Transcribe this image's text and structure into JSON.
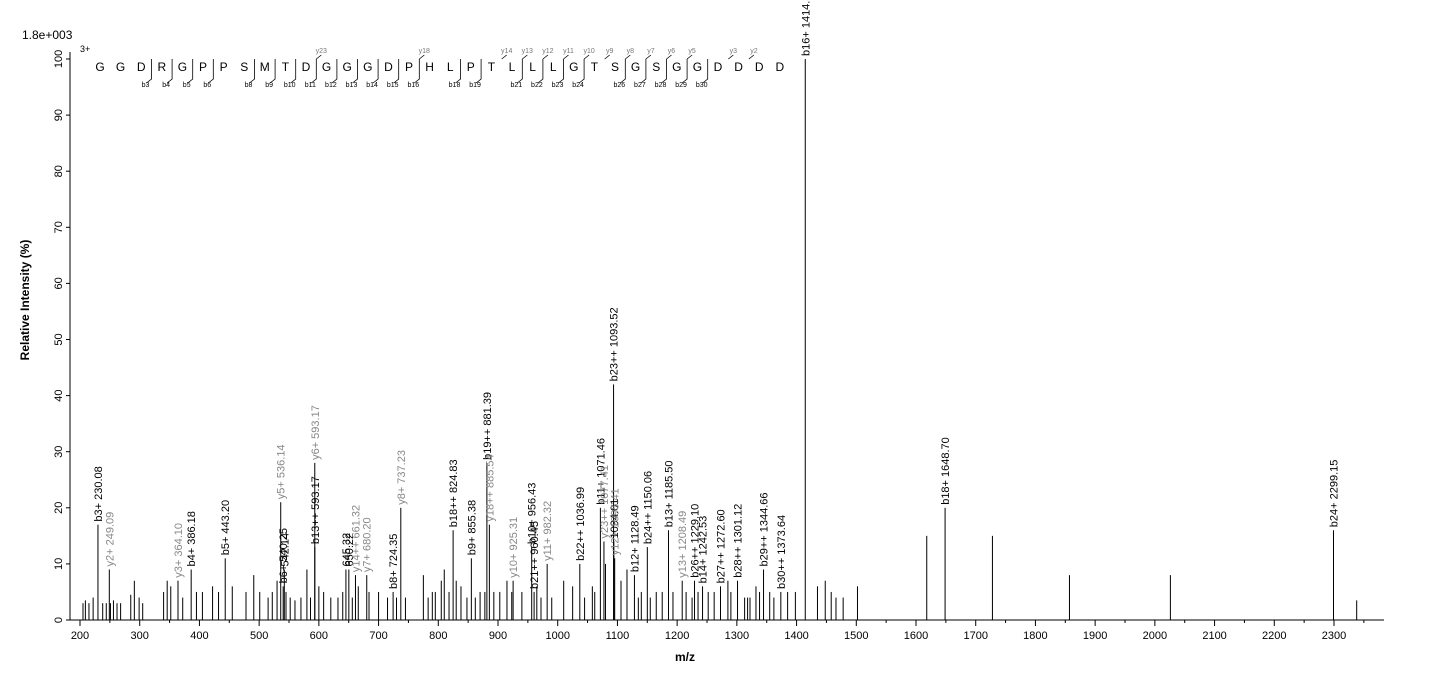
{
  "chart_data": {
    "type": "bar",
    "scale_label": "1.8e+003",
    "precursor_charge": "3+",
    "xlabel": "m/z",
    "ylabel": "Relative   Intensity (%)",
    "xlim": [
      195,
      2380
    ],
    "ylim": [
      0,
      100
    ],
    "x_ticks": [
      200,
      300,
      400,
      500,
      600,
      700,
      800,
      900,
      1000,
      1100,
      1200,
      1300,
      1400,
      1500,
      1600,
      1700,
      1800,
      1900,
      2000,
      2100,
      2200,
      2300
    ],
    "y_ticks": [
      0,
      10,
      20,
      30,
      40,
      50,
      60,
      70,
      80,
      90,
      100
    ],
    "sequence": [
      "G",
      "G",
      "D",
      "R",
      "G",
      "P",
      "P",
      "S",
      "M",
      "T",
      "D",
      "G",
      "G",
      "G",
      "D",
      "P",
      "H",
      "L",
      "P",
      "T",
      "L",
      "L",
      "L",
      "G",
      "T",
      "S",
      "G",
      "S",
      "G",
      "G",
      "D",
      "D",
      "D",
      "D"
    ],
    "b_ions": [
      {
        "after": 3,
        "label": "b3"
      },
      {
        "after": 4,
        "label": "b4"
      },
      {
        "after": 5,
        "label": "b5"
      },
      {
        "after": 6,
        "label": "b6"
      },
      {
        "after": 8,
        "label": "b8"
      },
      {
        "after": 9,
        "label": "b9"
      },
      {
        "after": 10,
        "label": "b10"
      },
      {
        "after": 11,
        "label": "b11"
      },
      {
        "after": 12,
        "label": "b12"
      },
      {
        "after": 13,
        "label": "b13"
      },
      {
        "after": 14,
        "label": "b14"
      },
      {
        "after": 15,
        "label": "b15"
      },
      {
        "after": 16,
        "label": "b16"
      },
      {
        "after": 18,
        "label": "b18"
      },
      {
        "after": 19,
        "label": "b19"
      },
      {
        "after": 21,
        "label": "b21"
      },
      {
        "after": 22,
        "label": "b22"
      },
      {
        "after": 23,
        "label": "b23"
      },
      {
        "after": 24,
        "label": "b24"
      },
      {
        "after": 26,
        "label": "b26"
      },
      {
        "after": 27,
        "label": "b27"
      },
      {
        "after": 28,
        "label": "b28"
      },
      {
        "after": 29,
        "label": "b29"
      },
      {
        "after": 30,
        "label": "b30"
      }
    ],
    "y_ions": [
      {
        "after": 11,
        "label": "y23"
      },
      {
        "after": 16,
        "label": "y18"
      },
      {
        "after": 20,
        "label": "y14"
      },
      {
        "after": 21,
        "label": "y13"
      },
      {
        "after": 22,
        "label": "y12"
      },
      {
        "after": 23,
        "label": "y11"
      },
      {
        "after": 24,
        "label": "y10"
      },
      {
        "after": 25,
        "label": "y9"
      },
      {
        "after": 26,
        "label": "y8"
      },
      {
        "after": 27,
        "label": "y7"
      },
      {
        "after": 28,
        "label": "y6"
      },
      {
        "after": 29,
        "label": "y5"
      },
      {
        "after": 31,
        "label": "y3"
      },
      {
        "after": 32,
        "label": "y2"
      }
    ],
    "annotated_peaks": [
      {
        "mz": 230.08,
        "y": 17,
        "label": "b3+ 230.08",
        "color": "dark"
      },
      {
        "mz": 249.09,
        "y": 9,
        "label": "y2+ 249.09",
        "color": "grey"
      },
      {
        "mz": 364.1,
        "y": 7,
        "label": "y3+ 364.10",
        "color": "grey"
      },
      {
        "mz": 386.18,
        "y": 9,
        "label": "b4+ 386.18",
        "color": "dark"
      },
      {
        "mz": 443.2,
        "y": 11,
        "label": "b5+ 443.20",
        "color": "dark"
      },
      {
        "mz": 536.14,
        "y": 21,
        "label": "y5+ 536.14",
        "color": "grey"
      },
      {
        "mz": 540.25,
        "y": 6,
        "label": "b6+ 540.25",
        "color": "dark"
      },
      {
        "mz": 542.14,
        "y": 9,
        "label": "542.14",
        "color": "dark"
      },
      {
        "mz": 593.17,
        "y": 13,
        "label": "b13++ 593.17",
        "color": "dark"
      },
      {
        "mz": 593.17,
        "y": 28,
        "label": "y6+ 593.17",
        "color": "grey"
      },
      {
        "mz": 645.32,
        "y": 9,
        "label": "645.32",
        "color": "dark"
      },
      {
        "mz": 650.22,
        "y": 9,
        "label": "650.22",
        "color": "dark"
      },
      {
        "mz": 661.32,
        "y": 8,
        "label": "y14++ 661.32",
        "color": "grey"
      },
      {
        "mz": 680.2,
        "y": 8,
        "label": "y7+ 680.20",
        "color": "grey"
      },
      {
        "mz": 724.35,
        "y": 5,
        "label": "b8+ 724.35",
        "color": "dark"
      },
      {
        "mz": 737.23,
        "y": 20,
        "label": "y8+ 737.23",
        "color": "grey"
      },
      {
        "mz": 824.83,
        "y": 16,
        "label": "b18++ 824.83",
        "color": "dark"
      },
      {
        "mz": 855.38,
        "y": 11,
        "label": "b9+ 855.38",
        "color": "dark"
      },
      {
        "mz": 881.39,
        "y": 28,
        "label": "b19++ 881.39",
        "color": "dark"
      },
      {
        "mz": 885.54,
        "y": 17,
        "label": "y18++ 885.54",
        "color": "grey"
      },
      {
        "mz": 925.31,
        "y": 7,
        "label": "y10+ 925.31",
        "color": "grey"
      },
      {
        "mz": 956.43,
        "y": 13,
        "label": "b10+ 956.43",
        "color": "dark"
      },
      {
        "mz": 960.45,
        "y": 5,
        "label": "b21++ 960.45",
        "color": "dark"
      },
      {
        "mz": 982.32,
        "y": 10,
        "label": "y11+ 982.32",
        "color": "grey"
      },
      {
        "mz": 1036.99,
        "y": 10,
        "label": "b22++ 1036.99",
        "color": "dark"
      },
      {
        "mz": 1071.46,
        "y": 20,
        "label": "b11+ 1071.46",
        "color": "dark"
      },
      {
        "mz": 1077.41,
        "y": 14,
        "label": "y23++ 1077.41",
        "color": "grey"
      },
      {
        "mz": 1093.52,
        "y": 42,
        "label": "b23++ 1093.52",
        "color": "dark"
      },
      {
        "mz": 1094.01,
        "y": 14,
        "label": "1094.01",
        "color": "dark"
      },
      {
        "mz": 1095.41,
        "y": 11,
        "label": "y12+ 1095.41",
        "color": "grey"
      },
      {
        "mz": 1128.49,
        "y": 8,
        "label": "b12+ 1128.49",
        "color": "dark"
      },
      {
        "mz": 1150.06,
        "y": 13,
        "label": "b24++ 1150.06",
        "color": "dark"
      },
      {
        "mz": 1185.5,
        "y": 16,
        "label": "b13+ 1185.50",
        "color": "dark"
      },
      {
        "mz": 1208.49,
        "y": 7,
        "label": "y13+ 1208.49",
        "color": "grey"
      },
      {
        "mz": 1229.1,
        "y": 7,
        "label": "b26++ 1229.10",
        "color": "dark"
      },
      {
        "mz": 1242.53,
        "y": 6,
        "label": "b14+ 1242.53",
        "color": "dark"
      },
      {
        "mz": 1272.6,
        "y": 6,
        "label": "b27++ 1272.60",
        "color": "dark"
      },
      {
        "mz": 1301.12,
        "y": 7,
        "label": "b28++ 1301.12",
        "color": "dark"
      },
      {
        "mz": 1344.66,
        "y": 9,
        "label": "b29++ 1344.66",
        "color": "dark"
      },
      {
        "mz": 1373.64,
        "y": 5,
        "label": "b30++ 1373.64",
        "color": "dark"
      },
      {
        "mz": 1414.54,
        "y": 100,
        "label": "b16+ 1414.54",
        "color": "dark"
      },
      {
        "mz": 1648.7,
        "y": 20,
        "label": "b18+ 1648.70",
        "color": "dark"
      },
      {
        "mz": 2299.15,
        "y": 16,
        "label": "b24+ 2299.15",
        "color": "dark"
      }
    ],
    "background_peaks": [
      [
        205,
        3
      ],
      [
        209,
        3.5
      ],
      [
        215,
        3
      ],
      [
        222,
        4
      ],
      [
        238,
        3
      ],
      [
        244,
        3
      ],
      [
        251,
        3
      ],
      [
        256,
        3.5
      ],
      [
        262,
        3
      ],
      [
        268,
        3
      ],
      [
        285,
        4.5
      ],
      [
        291,
        7
      ],
      [
        299,
        4
      ],
      [
        305,
        3
      ],
      [
        340,
        5
      ],
      [
        346,
        7
      ],
      [
        352,
        6
      ],
      [
        372,
        4
      ],
      [
        395,
        5
      ],
      [
        405,
        5
      ],
      [
        422,
        6
      ],
      [
        432,
        5
      ],
      [
        455,
        6
      ],
      [
        478,
        5
      ],
      [
        491,
        8
      ],
      [
        501,
        5
      ],
      [
        515,
        4
      ],
      [
        522,
        5
      ],
      [
        530,
        7
      ],
      [
        545,
        5
      ],
      [
        552,
        4
      ],
      [
        560,
        3.5
      ],
      [
        570,
        4
      ],
      [
        580,
        9
      ],
      [
        586,
        4
      ],
      [
        600,
        6
      ],
      [
        608,
        5
      ],
      [
        620,
        4
      ],
      [
        632,
        4
      ],
      [
        640,
        5
      ],
      [
        656,
        4
      ],
      [
        666,
        6
      ],
      [
        684,
        5
      ],
      [
        700,
        5
      ],
      [
        715,
        4
      ],
      [
        730,
        4
      ],
      [
        745,
        4
      ],
      [
        775,
        8
      ],
      [
        783,
        4
      ],
      [
        790,
        5
      ],
      [
        795,
        5
      ],
      [
        805,
        7
      ],
      [
        810,
        9
      ],
      [
        818,
        5
      ],
      [
        830,
        7
      ],
      [
        838,
        6
      ],
      [
        848,
        4
      ],
      [
        862,
        4
      ],
      [
        870,
        5
      ],
      [
        878,
        5
      ],
      [
        893,
        5
      ],
      [
        903,
        5
      ],
      [
        915,
        7
      ],
      [
        923,
        5
      ],
      [
        940,
        5
      ],
      [
        965,
        6
      ],
      [
        972,
        4
      ],
      [
        990,
        4
      ],
      [
        1010,
        7
      ],
      [
        1025,
        6
      ],
      [
        1045,
        4
      ],
      [
        1058,
        6
      ],
      [
        1062,
        5
      ],
      [
        1080,
        10
      ],
      [
        1106,
        7
      ],
      [
        1116,
        9
      ],
      [
        1135,
        4
      ],
      [
        1140,
        5
      ],
      [
        1155,
        4
      ],
      [
        1165,
        5
      ],
      [
        1175,
        5
      ],
      [
        1193,
        5
      ],
      [
        1215,
        5
      ],
      [
        1225,
        4
      ],
      [
        1235,
        5
      ],
      [
        1252,
        5
      ],
      [
        1262,
        5
      ],
      [
        1285,
        7
      ],
      [
        1290,
        5
      ],
      [
        1313,
        4
      ],
      [
        1318,
        4
      ],
      [
        1322,
        4
      ],
      [
        1332,
        6
      ],
      [
        1338,
        5
      ],
      [
        1355,
        5
      ],
      [
        1362,
        4
      ],
      [
        1385,
        5
      ],
      [
        1398,
        5
      ],
      [
        1435,
        6
      ],
      [
        1448,
        7
      ],
      [
        1458,
        5
      ],
      [
        1466,
        4
      ],
      [
        1478,
        4
      ],
      [
        1502,
        6
      ],
      [
        1618,
        15
      ],
      [
        1728,
        15
      ],
      [
        1857,
        8
      ],
      [
        2026,
        8
      ],
      [
        2338,
        3.5
      ]
    ]
  }
}
